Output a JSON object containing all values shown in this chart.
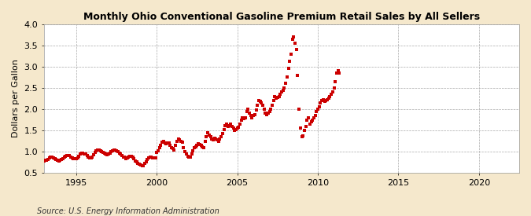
{
  "title": "Monthly Ohio Conventional Gasoline Premium Retail Sales by All Sellers",
  "ylabel": "Dollars per Gallon",
  "source": "Source: U.S. Energy Information Administration",
  "xlim": [
    1993.0,
    2022.5
  ],
  "ylim": [
    0.5,
    4.0
  ],
  "yticks": [
    0.5,
    1.0,
    1.5,
    2.0,
    2.5,
    3.0,
    3.5,
    4.0
  ],
  "xticks": [
    1995,
    2000,
    2005,
    2010,
    2015,
    2020
  ],
  "marker_color": "#cc0000",
  "bg_color": "#f5e8cc",
  "plot_bg_color": "#ffffff",
  "data": [
    [
      1993,
      1,
      0.79
    ],
    [
      1993,
      2,
      0.81
    ],
    [
      1993,
      3,
      0.8
    ],
    [
      1993,
      4,
      0.82
    ],
    [
      1993,
      5,
      0.85
    ],
    [
      1993,
      6,
      0.88
    ],
    [
      1993,
      7,
      0.87
    ],
    [
      1993,
      8,
      0.85
    ],
    [
      1993,
      9,
      0.84
    ],
    [
      1993,
      10,
      0.82
    ],
    [
      1993,
      11,
      0.8
    ],
    [
      1993,
      12,
      0.79
    ],
    [
      1994,
      1,
      0.8
    ],
    [
      1994,
      2,
      0.82
    ],
    [
      1994,
      3,
      0.83
    ],
    [
      1994,
      4,
      0.87
    ],
    [
      1994,
      5,
      0.9
    ],
    [
      1994,
      6,
      0.92
    ],
    [
      1994,
      7,
      0.92
    ],
    [
      1994,
      8,
      0.91
    ],
    [
      1994,
      9,
      0.88
    ],
    [
      1994,
      10,
      0.86
    ],
    [
      1994,
      11,
      0.84
    ],
    [
      1994,
      12,
      0.83
    ],
    [
      1995,
      1,
      0.84
    ],
    [
      1995,
      2,
      0.86
    ],
    [
      1995,
      3,
      0.9
    ],
    [
      1995,
      4,
      0.95
    ],
    [
      1995,
      5,
      0.97
    ],
    [
      1995,
      6,
      0.96
    ],
    [
      1995,
      7,
      0.95
    ],
    [
      1995,
      8,
      0.94
    ],
    [
      1995,
      9,
      0.91
    ],
    [
      1995,
      10,
      0.88
    ],
    [
      1995,
      11,
      0.86
    ],
    [
      1995,
      12,
      0.85
    ],
    [
      1996,
      1,
      0.88
    ],
    [
      1996,
      2,
      0.93
    ],
    [
      1996,
      3,
      0.99
    ],
    [
      1996,
      4,
      1.02
    ],
    [
      1996,
      5,
      1.05
    ],
    [
      1996,
      6,
      1.04
    ],
    [
      1996,
      7,
      1.02
    ],
    [
      1996,
      8,
      1.01
    ],
    [
      1996,
      9,
      0.99
    ],
    [
      1996,
      10,
      0.97
    ],
    [
      1996,
      11,
      0.95
    ],
    [
      1996,
      12,
      0.93
    ],
    [
      1997,
      1,
      0.94
    ],
    [
      1997,
      2,
      0.97
    ],
    [
      1997,
      3,
      1.0
    ],
    [
      1997,
      4,
      1.03
    ],
    [
      1997,
      5,
      1.05
    ],
    [
      1997,
      6,
      1.04
    ],
    [
      1997,
      7,
      1.02
    ],
    [
      1997,
      8,
      1.0
    ],
    [
      1997,
      9,
      0.97
    ],
    [
      1997,
      10,
      0.94
    ],
    [
      1997,
      11,
      0.91
    ],
    [
      1997,
      12,
      0.88
    ],
    [
      1998,
      1,
      0.87
    ],
    [
      1998,
      2,
      0.84
    ],
    [
      1998,
      3,
      0.86
    ],
    [
      1998,
      4,
      0.88
    ],
    [
      1998,
      5,
      0.9
    ],
    [
      1998,
      6,
      0.89
    ],
    [
      1998,
      7,
      0.87
    ],
    [
      1998,
      8,
      0.83
    ],
    [
      1998,
      9,
      0.79
    ],
    [
      1998,
      10,
      0.76
    ],
    [
      1998,
      11,
      0.73
    ],
    [
      1998,
      12,
      0.71
    ],
    [
      1999,
      1,
      0.7
    ],
    [
      1999,
      2,
      0.68
    ],
    [
      1999,
      3,
      0.67
    ],
    [
      1999,
      4,
      0.72
    ],
    [
      1999,
      5,
      0.77
    ],
    [
      1999,
      6,
      0.82
    ],
    [
      1999,
      7,
      0.86
    ],
    [
      1999,
      8,
      0.88
    ],
    [
      1999,
      9,
      0.87
    ],
    [
      1999,
      10,
      0.86
    ],
    [
      1999,
      11,
      0.85
    ],
    [
      1999,
      12,
      0.86
    ],
    [
      2000,
      1,
      0.98
    ],
    [
      2000,
      2,
      1.02
    ],
    [
      2000,
      3,
      1.1
    ],
    [
      2000,
      4,
      1.15
    ],
    [
      2000,
      5,
      1.22
    ],
    [
      2000,
      6,
      1.25
    ],
    [
      2000,
      7,
      1.2
    ],
    [
      2000,
      8,
      1.18
    ],
    [
      2000,
      9,
      1.21
    ],
    [
      2000,
      10,
      1.2
    ],
    [
      2000,
      11,
      1.15
    ],
    [
      2000,
      12,
      1.1
    ],
    [
      2001,
      1,
      1.08
    ],
    [
      2001,
      2,
      1.05
    ],
    [
      2001,
      3,
      1.15
    ],
    [
      2001,
      4,
      1.25
    ],
    [
      2001,
      5,
      1.3
    ],
    [
      2001,
      6,
      1.28
    ],
    [
      2001,
      7,
      1.25
    ],
    [
      2001,
      8,
      1.22
    ],
    [
      2001,
      9,
      1.1
    ],
    [
      2001,
      10,
      1.0
    ],
    [
      2001,
      11,
      0.95
    ],
    [
      2001,
      12,
      0.9
    ],
    [
      2002,
      1,
      0.88
    ],
    [
      2002,
      2,
      0.88
    ],
    [
      2002,
      3,
      0.95
    ],
    [
      2002,
      4,
      1.02
    ],
    [
      2002,
      5,
      1.1
    ],
    [
      2002,
      6,
      1.12
    ],
    [
      2002,
      7,
      1.15
    ],
    [
      2002,
      8,
      1.18
    ],
    [
      2002,
      9,
      1.17
    ],
    [
      2002,
      10,
      1.15
    ],
    [
      2002,
      11,
      1.12
    ],
    [
      2002,
      12,
      1.1
    ],
    [
      2003,
      1,
      1.25
    ],
    [
      2003,
      2,
      1.35
    ],
    [
      2003,
      3,
      1.45
    ],
    [
      2003,
      4,
      1.4
    ],
    [
      2003,
      5,
      1.35
    ],
    [
      2003,
      6,
      1.3
    ],
    [
      2003,
      7,
      1.28
    ],
    [
      2003,
      8,
      1.32
    ],
    [
      2003,
      9,
      1.3
    ],
    [
      2003,
      10,
      1.28
    ],
    [
      2003,
      11,
      1.25
    ],
    [
      2003,
      12,
      1.3
    ],
    [
      2004,
      1,
      1.35
    ],
    [
      2004,
      2,
      1.42
    ],
    [
      2004,
      3,
      1.52
    ],
    [
      2004,
      4,
      1.62
    ],
    [
      2004,
      5,
      1.65
    ],
    [
      2004,
      6,
      1.6
    ],
    [
      2004,
      7,
      1.62
    ],
    [
      2004,
      8,
      1.65
    ],
    [
      2004,
      9,
      1.6
    ],
    [
      2004,
      10,
      1.55
    ],
    [
      2004,
      11,
      1.5
    ],
    [
      2004,
      12,
      1.52
    ],
    [
      2005,
      1,
      1.55
    ],
    [
      2005,
      2,
      1.58
    ],
    [
      2005,
      3,
      1.65
    ],
    [
      2005,
      4,
      1.75
    ],
    [
      2005,
      5,
      1.8
    ],
    [
      2005,
      6,
      1.78
    ],
    [
      2005,
      7,
      1.8
    ],
    [
      2005,
      8,
      1.95
    ],
    [
      2005,
      9,
      2.0
    ],
    [
      2005,
      10,
      1.9
    ],
    [
      2005,
      11,
      1.85
    ],
    [
      2005,
      12,
      1.8
    ],
    [
      2006,
      1,
      1.85
    ],
    [
      2006,
      2,
      1.88
    ],
    [
      2006,
      3,
      1.98
    ],
    [
      2006,
      4,
      2.1
    ],
    [
      2006,
      5,
      2.2
    ],
    [
      2006,
      6,
      2.18
    ],
    [
      2006,
      7,
      2.15
    ],
    [
      2006,
      8,
      2.1
    ],
    [
      2006,
      9,
      2.0
    ],
    [
      2006,
      10,
      1.9
    ],
    [
      2006,
      11,
      1.88
    ],
    [
      2006,
      12,
      1.9
    ],
    [
      2007,
      1,
      1.95
    ],
    [
      2007,
      2,
      2.0
    ],
    [
      2007,
      3,
      2.1
    ],
    [
      2007,
      4,
      2.2
    ],
    [
      2007,
      5,
      2.3
    ],
    [
      2007,
      6,
      2.25
    ],
    [
      2007,
      7,
      2.28
    ],
    [
      2007,
      8,
      2.3
    ],
    [
      2007,
      9,
      2.35
    ],
    [
      2007,
      10,
      2.4
    ],
    [
      2007,
      11,
      2.45
    ],
    [
      2007,
      12,
      2.5
    ],
    [
      2008,
      1,
      2.6
    ],
    [
      2008,
      2,
      2.75
    ],
    [
      2008,
      3,
      2.95
    ],
    [
      2008,
      4,
      3.12
    ],
    [
      2008,
      5,
      3.3
    ],
    [
      2008,
      6,
      3.65
    ],
    [
      2008,
      7,
      3.7
    ],
    [
      2008,
      8,
      3.55
    ],
    [
      2008,
      9,
      3.4
    ],
    [
      2008,
      10,
      2.8
    ],
    [
      2008,
      11,
      2.0
    ],
    [
      2008,
      12,
      1.55
    ],
    [
      2009,
      1,
      1.35
    ],
    [
      2009,
      2,
      1.38
    ],
    [
      2009,
      3,
      1.5
    ],
    [
      2009,
      4,
      1.6
    ],
    [
      2009,
      5,
      1.75
    ],
    [
      2009,
      6,
      1.8
    ],
    [
      2009,
      7,
      1.65
    ],
    [
      2009,
      8,
      1.7
    ],
    [
      2009,
      9,
      1.75
    ],
    [
      2009,
      10,
      1.8
    ],
    [
      2009,
      11,
      1.85
    ],
    [
      2009,
      12,
      1.95
    ],
    [
      2010,
      1,
      2.0
    ],
    [
      2010,
      2,
      2.05
    ],
    [
      2010,
      3,
      2.15
    ],
    [
      2010,
      4,
      2.2
    ],
    [
      2010,
      5,
      2.22
    ],
    [
      2010,
      6,
      2.18
    ],
    [
      2010,
      7,
      2.2
    ],
    [
      2010,
      8,
      2.22
    ],
    [
      2010,
      9,
      2.25
    ],
    [
      2010,
      10,
      2.3
    ],
    [
      2010,
      11,
      2.35
    ],
    [
      2010,
      12,
      2.4
    ],
    [
      2011,
      1,
      2.5
    ],
    [
      2011,
      2,
      2.65
    ],
    [
      2011,
      3,
      2.85
    ],
    [
      2011,
      4,
      2.9
    ],
    [
      2011,
      5,
      2.85
    ]
  ]
}
